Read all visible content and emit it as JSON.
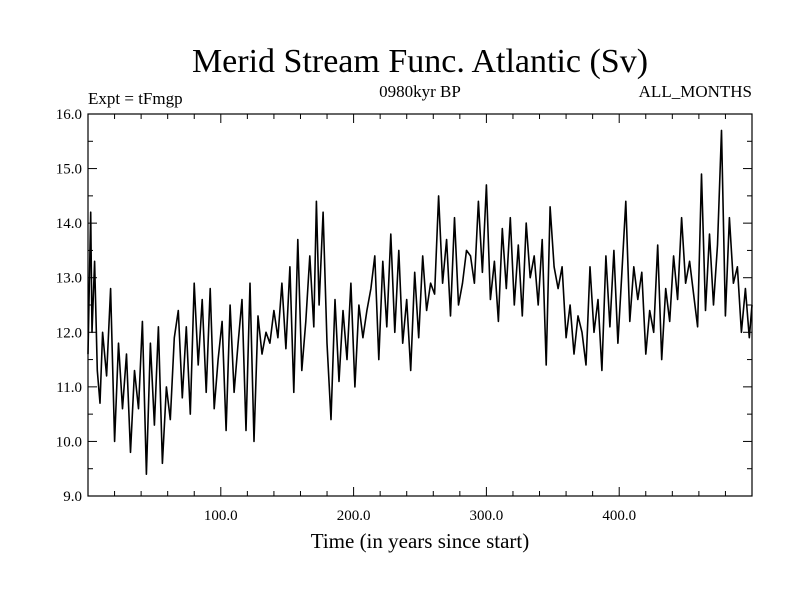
{
  "chart_data": {
    "type": "line",
    "title": "Merid Stream Func. Atlantic (Sv)",
    "subtitle_left": "Expt = tFmgp",
    "subtitle_center": "0980kyr BP",
    "subtitle_right": "ALL_MONTHS",
    "xlabel": "Time (in years since start)",
    "ylabel": "",
    "xlim": [
      0,
      500
    ],
    "ylim": [
      9.0,
      16.0
    ],
    "xticks": [
      100,
      200,
      300,
      400
    ],
    "xtick_labels": [
      "100.0",
      "200.0",
      "300.0",
      "400.0"
    ],
    "yticks": [
      9,
      10,
      11,
      12,
      13,
      14,
      15,
      16
    ],
    "ytick_labels": [
      "9.0",
      "10.0",
      "11.0",
      "12.0",
      "13.0",
      "14.0",
      "15.0",
      "16.0"
    ],
    "grid": false,
    "series": [
      {
        "name": "Merid Stream Func. Atlantic",
        "x": [
          0,
          2,
          3,
          5,
          7,
          9,
          11,
          14,
          17,
          20,
          23,
          26,
          29,
          32,
          35,
          38,
          41,
          44,
          47,
          50,
          53,
          56,
          59,
          62,
          65,
          68,
          71,
          74,
          77,
          80,
          83,
          86,
          89,
          92,
          95,
          98,
          101,
          104,
          107,
          110,
          113,
          116,
          119,
          122,
          125,
          128,
          131,
          134,
          137,
          140,
          143,
          146,
          149,
          152,
          155,
          158,
          161,
          164,
          167,
          170,
          172,
          174,
          177,
          180,
          183,
          186,
          189,
          192,
          195,
          198,
          201,
          204,
          207,
          210,
          213,
          216,
          219,
          222,
          225,
          228,
          231,
          234,
          237,
          240,
          243,
          246,
          249,
          252,
          255,
          258,
          261,
          264,
          267,
          270,
          273,
          276,
          279,
          282,
          285,
          288,
          291,
          294,
          297,
          300,
          303,
          306,
          309,
          312,
          315,
          318,
          321,
          324,
          327,
          330,
          333,
          336,
          339,
          342,
          345,
          348,
          351,
          354,
          357,
          360,
          363,
          366,
          369,
          372,
          375,
          378,
          381,
          384,
          387,
          390,
          393,
          396,
          399,
          402,
          405,
          408,
          411,
          414,
          417,
          420,
          423,
          426,
          429,
          432,
          435,
          438,
          441,
          444,
          447,
          450,
          453,
          456,
          459,
          462,
          465,
          468,
          471,
          474,
          477,
          480,
          483,
          486,
          489,
          492,
          495,
          498,
          500
        ],
        "values": [
          11.6,
          14.2,
          12.0,
          13.3,
          11.3,
          10.7,
          12.0,
          11.2,
          12.8,
          10.0,
          11.8,
          10.6,
          11.6,
          9.8,
          11.3,
          10.6,
          12.2,
          9.4,
          11.8,
          10.3,
          12.1,
          9.6,
          11.0,
          10.4,
          11.9,
          12.4,
          10.8,
          12.1,
          10.5,
          12.9,
          11.4,
          12.6,
          10.9,
          12.8,
          10.6,
          11.5,
          12.2,
          10.2,
          12.5,
          10.9,
          11.8,
          12.6,
          10.2,
          12.9,
          10.0,
          12.3,
          11.6,
          12.0,
          11.8,
          12.4,
          11.9,
          12.9,
          11.7,
          13.2,
          10.9,
          13.7,
          11.3,
          12.2,
          13.4,
          12.1,
          14.4,
          12.5,
          14.2,
          11.8,
          10.4,
          12.6,
          11.1,
          12.4,
          11.5,
          12.9,
          11.0,
          12.5,
          11.9,
          12.4,
          12.8,
          13.4,
          11.5,
          13.3,
          12.1,
          13.8,
          12.0,
          13.5,
          11.8,
          12.6,
          11.3,
          13.1,
          11.9,
          13.4,
          12.4,
          12.9,
          12.7,
          14.5,
          12.9,
          13.7,
          12.3,
          14.1,
          12.5,
          12.9,
          13.5,
          13.4,
          12.9,
          14.4,
          13.1,
          14.7,
          12.6,
          13.3,
          12.2,
          13.9,
          12.8,
          14.1,
          12.5,
          13.6,
          12.3,
          14.0,
          13.0,
          13.4,
          12.5,
          13.7,
          11.4,
          14.3,
          13.2,
          12.8,
          13.2,
          11.9,
          12.5,
          11.6,
          12.3,
          12.0,
          11.4,
          13.2,
          12.0,
          12.6,
          11.3,
          13.4,
          12.1,
          13.5,
          11.8,
          13.1,
          14.4,
          12.2,
          13.2,
          12.6,
          13.1,
          11.6,
          12.4,
          12.0,
          13.6,
          11.5,
          12.8,
          12.2,
          13.4,
          12.6,
          14.1,
          12.9,
          13.3,
          12.7,
          12.1,
          14.9,
          12.4,
          13.8,
          12.5,
          13.6,
          15.7,
          12.3,
          14.1,
          12.9,
          13.2,
          12.0,
          12.8,
          11.9,
          12.5
        ]
      }
    ]
  }
}
